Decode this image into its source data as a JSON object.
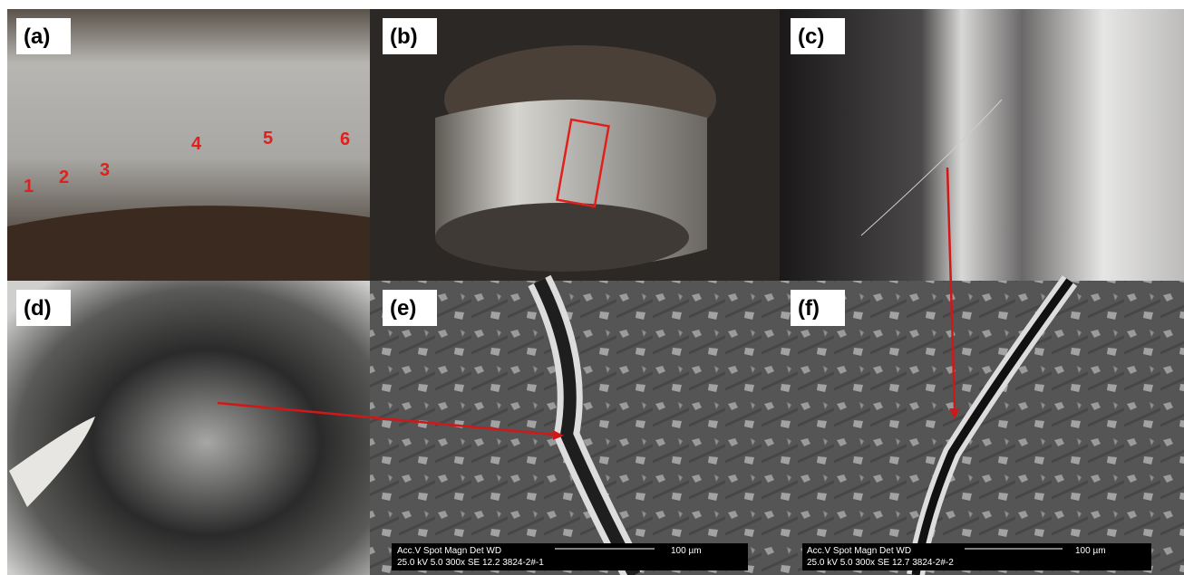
{
  "panels": [
    {
      "label": "(a)",
      "annotations": [
        "1",
        "2",
        "3",
        "4",
        "5",
        "6"
      ]
    },
    {
      "label": "(b)"
    },
    {
      "label": "(c)"
    },
    {
      "label": "(d)"
    },
    {
      "label": "(e)",
      "sem_bar": {
        "header": "Acc.V  Spot Magn   Det  WD",
        "values": "25.0 kV 5.0   300x   SE   12.2  3824-2#-1",
        "scale": "100 µm"
      }
    },
    {
      "label": "(f)",
      "sem_bar": {
        "header": "Acc.V  Spot Magn   Det  WD",
        "values": "25.0 kV 5.0   300x   SE   12.7  3824-2#-2",
        "scale": "100 µm"
      }
    }
  ]
}
